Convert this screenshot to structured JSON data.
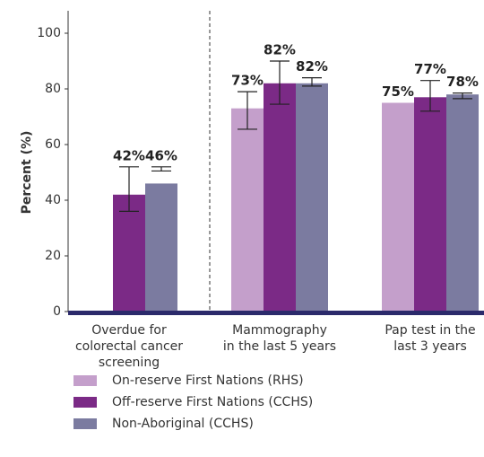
{
  "chart_data": {
    "type": "bar",
    "y_label": "Percent (%)",
    "categories": [
      [
        "Overdue for",
        "colorectal cancer",
        "screening"
      ],
      [
        "Mammography",
        "in the last 5 years"
      ],
      [
        "Pap test in the",
        "last 3 years"
      ]
    ],
    "series": [
      {
        "name": "On-reserve First Nations (RHS)",
        "color": "#c49fcb",
        "values": [
          null,
          73,
          75
        ],
        "value_labels": [
          null,
          "73%",
          "75%"
        ],
        "lower": [
          null,
          65.5,
          null
        ],
        "upper": [
          null,
          79,
          null
        ]
      },
      {
        "name": "Off-reserve First Nations (CCHS)",
        "color": "#7b2a86",
        "values": [
          42,
          82,
          77
        ],
        "value_labels": [
          "42%",
          "82%",
          "77%"
        ],
        "lower": [
          36,
          74.5,
          72
        ],
        "upper": [
          52,
          90,
          83
        ]
      },
      {
        "name": "Non-Aboriginal (CCHS)",
        "color": "#7b7ba0",
        "values": [
          46,
          82,
          78
        ],
        "value_labels": [
          "46%",
          "82%",
          "78%"
        ],
        "lower": [
          50.5,
          81,
          76.5
        ],
        "upper": [
          52,
          84,
          78.5
        ]
      }
    ],
    "ylim": [
      0,
      100
    ],
    "yticks": [
      0,
      20,
      40,
      60,
      80,
      100
    ],
    "grid": false,
    "legend": "bottom"
  }
}
